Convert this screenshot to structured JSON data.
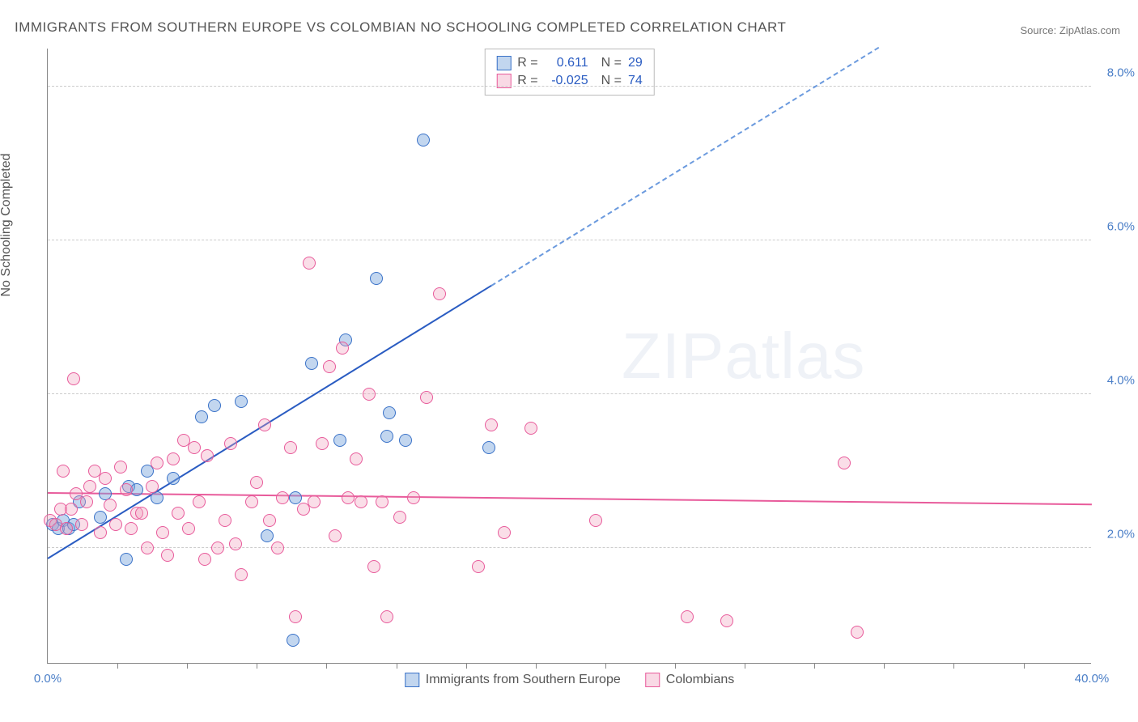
{
  "chart": {
    "type": "scatter",
    "title": "IMMIGRANTS FROM SOUTHERN EUROPE VS COLOMBIAN NO SCHOOLING COMPLETED CORRELATION CHART",
    "source": "Source: ZipAtlas.com",
    "y_axis_label": "No Schooling Completed",
    "background_color": "#ffffff",
    "grid_color": "#cccccc",
    "axis_color": "#888888",
    "tick_label_color": "#4a7ec7",
    "title_fontsize": 17,
    "label_fontsize": 16,
    "tick_fontsize": 15,
    "xlim": [
      0,
      40
    ],
    "ylim": [
      0.5,
      8.5
    ],
    "x_ticks_minor_step": 2.67,
    "y_gridlines": [
      2.0,
      4.0,
      6.0,
      8.0
    ],
    "x_tick_labels": [
      {
        "x": 0,
        "label": "0.0%"
      },
      {
        "x": 40,
        "label": "40.0%"
      }
    ],
    "y_tick_labels": [
      {
        "y": 2.0,
        "label": "2.0%"
      },
      {
        "y": 4.0,
        "label": "4.0%"
      },
      {
        "y": 6.0,
        "label": "6.0%"
      },
      {
        "y": 8.0,
        "label": "8.0%"
      }
    ],
    "watermark": {
      "prefix": "ZIP",
      "suffix": "atlas"
    },
    "series": [
      {
        "name": "Immigrants from Southern Europe",
        "legend_label": "Immigrants from Southern Europe",
        "marker_color": "#78a5dc",
        "marker_border": "#3a72c8",
        "line_color": "#2a5cc2",
        "marker_class": "blue",
        "R": "0.611",
        "N": "29",
        "trend": {
          "x1": 0,
          "y1": 1.85,
          "x2": 17,
          "y2": 5.4,
          "extend_x2": 40,
          "extend_y2": 10.2
        },
        "points": [
          [
            0.2,
            2.3
          ],
          [
            0.4,
            2.25
          ],
          [
            0.6,
            2.35
          ],
          [
            0.8,
            2.25
          ],
          [
            1.0,
            2.3
          ],
          [
            1.2,
            2.6
          ],
          [
            2.2,
            2.7
          ],
          [
            3.1,
            2.8
          ],
          [
            3.4,
            2.75
          ],
          [
            3.8,
            3.0
          ],
          [
            4.2,
            2.65
          ],
          [
            5.9,
            3.7
          ],
          [
            6.4,
            3.85
          ],
          [
            7.4,
            3.9
          ],
          [
            8.4,
            2.15
          ],
          [
            9.4,
            0.8
          ],
          [
            9.5,
            2.65
          ],
          [
            10.1,
            4.4
          ],
          [
            11.2,
            3.4
          ],
          [
            11.4,
            4.7
          ],
          [
            12.6,
            5.5
          ],
          [
            13.0,
            3.45
          ],
          [
            13.1,
            3.75
          ],
          [
            13.7,
            3.4
          ],
          [
            14.4,
            7.3
          ],
          [
            16.9,
            3.3
          ],
          [
            4.8,
            2.9
          ],
          [
            3.0,
            1.85
          ],
          [
            2.0,
            2.4
          ]
        ]
      },
      {
        "name": "Colombians",
        "legend_label": "Colombians",
        "marker_color": "#f0a0be",
        "marker_border": "#e85b9b",
        "line_color": "#e85b9b",
        "marker_class": "pink",
        "R": "-0.025",
        "N": "74",
        "trend": {
          "x1": 0,
          "y1": 2.7,
          "x2": 40,
          "y2": 2.55
        },
        "points": [
          [
            0.1,
            2.35
          ],
          [
            0.3,
            2.3
          ],
          [
            0.5,
            2.5
          ],
          [
            0.6,
            3.0
          ],
          [
            0.7,
            2.25
          ],
          [
            0.9,
            2.5
          ],
          [
            1.0,
            4.2
          ],
          [
            1.1,
            2.7
          ],
          [
            1.3,
            2.3
          ],
          [
            1.5,
            2.6
          ],
          [
            1.6,
            2.8
          ],
          [
            1.8,
            3.0
          ],
          [
            2.0,
            2.2
          ],
          [
            2.2,
            2.9
          ],
          [
            2.4,
            2.55
          ],
          [
            2.6,
            2.3
          ],
          [
            2.8,
            3.05
          ],
          [
            3.0,
            2.75
          ],
          [
            3.2,
            2.25
          ],
          [
            3.4,
            2.45
          ],
          [
            3.6,
            2.45
          ],
          [
            3.8,
            2.0
          ],
          [
            4.0,
            2.8
          ],
          [
            4.2,
            3.1
          ],
          [
            4.4,
            2.2
          ],
          [
            4.6,
            1.9
          ],
          [
            4.8,
            3.15
          ],
          [
            5.0,
            2.45
          ],
          [
            5.2,
            3.4
          ],
          [
            5.4,
            2.25
          ],
          [
            5.6,
            3.3
          ],
          [
            5.8,
            2.6
          ],
          [
            6.0,
            1.85
          ],
          [
            6.1,
            3.2
          ],
          [
            6.5,
            2.0
          ],
          [
            6.8,
            2.35
          ],
          [
            7.0,
            3.35
          ],
          [
            7.2,
            2.05
          ],
          [
            7.4,
            1.65
          ],
          [
            7.8,
            2.6
          ],
          [
            8.0,
            2.85
          ],
          [
            8.3,
            3.6
          ],
          [
            8.5,
            2.35
          ],
          [
            8.8,
            2.0
          ],
          [
            9.0,
            2.65
          ],
          [
            9.3,
            3.3
          ],
          [
            9.5,
            1.1
          ],
          [
            9.8,
            2.5
          ],
          [
            10.0,
            5.7
          ],
          [
            10.2,
            2.6
          ],
          [
            10.5,
            3.35
          ],
          [
            10.8,
            4.35
          ],
          [
            11.0,
            2.15
          ],
          [
            11.3,
            4.6
          ],
          [
            11.5,
            2.65
          ],
          [
            11.8,
            3.15
          ],
          [
            12.0,
            2.6
          ],
          [
            12.3,
            4.0
          ],
          [
            12.5,
            1.75
          ],
          [
            12.8,
            2.6
          ],
          [
            13.0,
            1.1
          ],
          [
            13.5,
            2.4
          ],
          [
            14.0,
            2.65
          ],
          [
            14.5,
            3.95
          ],
          [
            15.0,
            5.3
          ],
          [
            16.5,
            1.75
          ],
          [
            17.0,
            3.6
          ],
          [
            17.5,
            2.2
          ],
          [
            18.5,
            3.55
          ],
          [
            21.0,
            2.35
          ],
          [
            24.5,
            1.1
          ],
          [
            26.0,
            1.05
          ],
          [
            30.5,
            3.1
          ],
          [
            31.0,
            0.9
          ]
        ]
      }
    ]
  }
}
